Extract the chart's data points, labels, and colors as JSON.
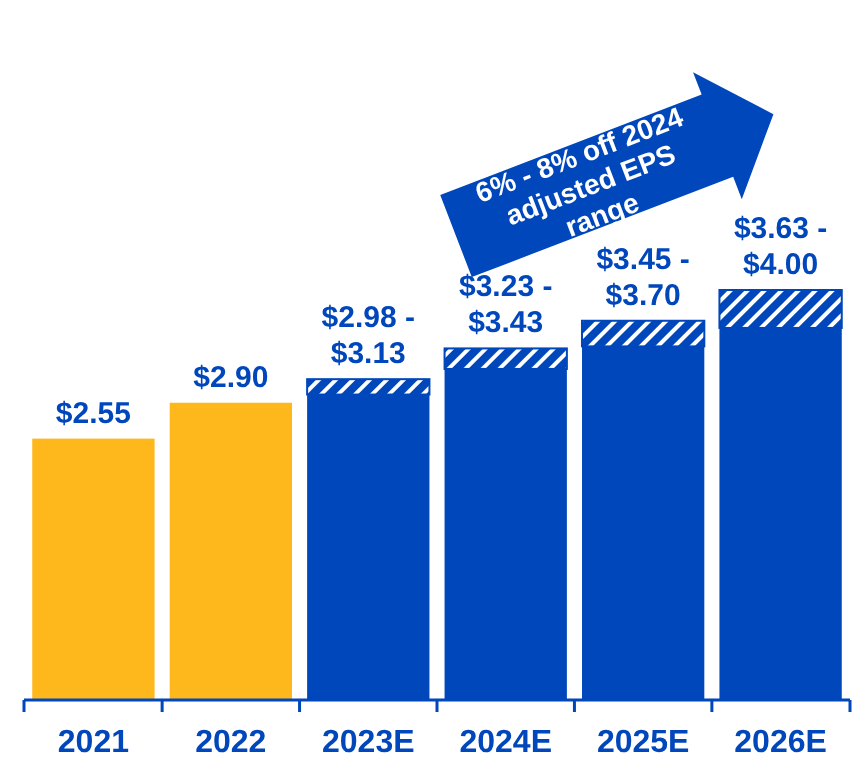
{
  "chart_data": {
    "type": "bar",
    "stacked": true,
    "categories": [
      "2021",
      "2022",
      "2023E",
      "2024E",
      "2025E",
      "2026E"
    ],
    "series": [
      {
        "colors": [
          "#ffb81c",
          "#ffb81c",
          "#0047bb",
          "#0047bb",
          "#0047bb",
          "#0047bb"
        ],
        "color": "#0047bb",
        "values": [
          2.55,
          2.9,
          2.98,
          3.23,
          3.45,
          3.63
        ],
        "value_labels": [
          "$2.55",
          "$2.90",
          "$2.98 -",
          "$3.23 -",
          "$3.45 -",
          "$3.63 -"
        ]
      },
      {
        "color": "#0047bb",
        "values": [
          null,
          null,
          0.15,
          0.2,
          0.25,
          0.37
        ]
      }
    ],
    "totals": [
      null,
      null,
      "$3.13",
      "$3.43",
      "$3.70",
      "$4.00"
    ],
    "tick_labels": "x",
    "annotations": [
      "6% - 8% off 2024 adjusted EPS range"
    ]
  }
}
